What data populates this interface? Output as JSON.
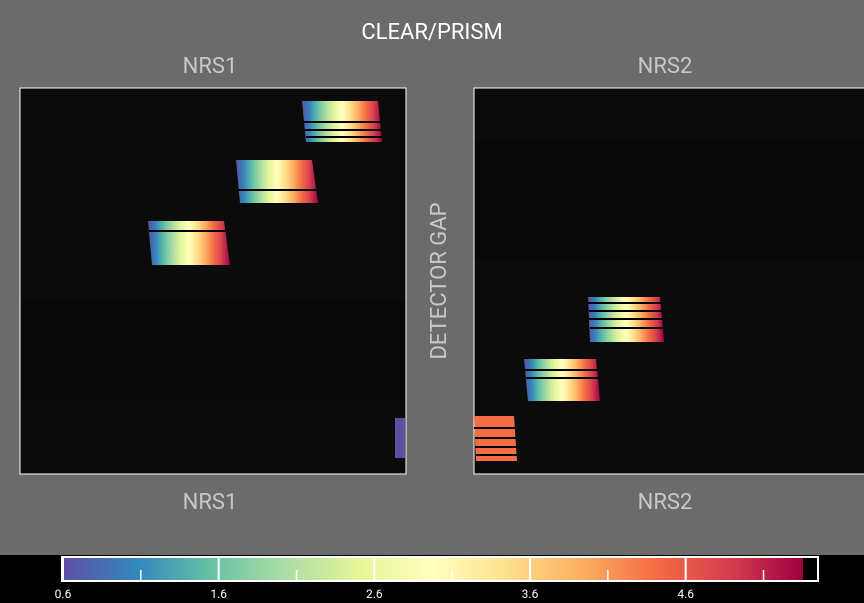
{
  "header": {
    "title": "CLEAR/PRISM"
  },
  "detectors": [
    {
      "top_label": "NRS1",
      "bottom_label": "NRS1"
    },
    {
      "top_label": "NRS2",
      "bottom_label": "NRS2"
    }
  ],
  "gap_label": "DETECTOR GAP",
  "colorbar": {
    "range": [
      0.6,
      5.45
    ],
    "ticks": [
      0.6,
      1.6,
      2.6,
      3.6,
      4.6
    ],
    "minor_ticks": [
      1.1,
      2.1,
      3.1,
      4.1,
      5.1
    ]
  }
}
